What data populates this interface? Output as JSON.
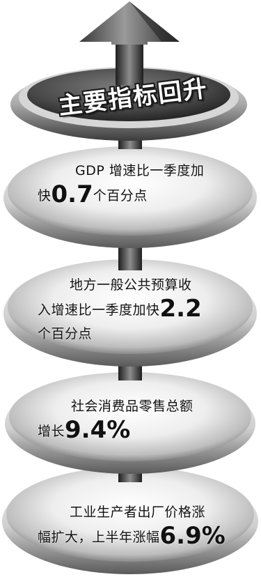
{
  "title": "主要指标回升",
  "items": [
    {
      "line1": "GDP 增速比一季度加",
      "line2_pre": "快",
      "value": "0.7",
      "line2_post": "个百分点",
      "line3": ""
    },
    {
      "line1": "地方一般公共预算收",
      "line2_pre": "入增速比一季度加快",
      "value": "2.2",
      "line2_post": "",
      "line3": "个百分点"
    },
    {
      "line1": "社会消费品零售总额",
      "line2_pre": "增长",
      "value": "9.4%",
      "line2_post": "",
      "line3": ""
    },
    {
      "line1": "工业生产者出厂价格涨",
      "line2_pre": "幅扩大，上半年涨幅",
      "value": "6.9%",
      "line2_post": "",
      "line3": ""
    }
  ],
  "icons": {
    "arrow": "up-arrow-icon",
    "stack": "disc-stack-icon"
  }
}
